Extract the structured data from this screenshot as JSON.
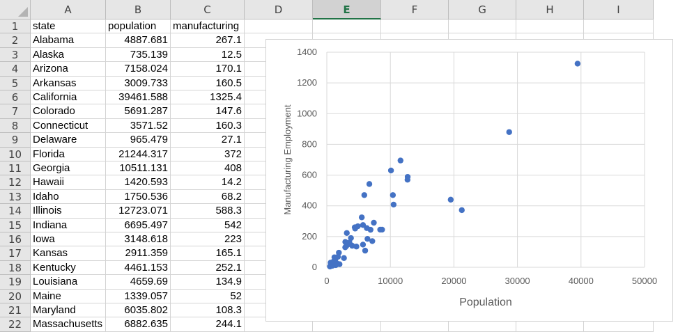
{
  "sheet": {
    "columns": [
      "A",
      "B",
      "C",
      "D",
      "E",
      "F",
      "G",
      "H",
      "I"
    ],
    "selected_column": "E",
    "row_numbers": [
      "1",
      "2",
      "3",
      "4",
      "5",
      "6",
      "7",
      "8",
      "9",
      "10",
      "11",
      "12",
      "13",
      "14",
      "15",
      "16",
      "17",
      "18",
      "19",
      "20",
      "21",
      "22"
    ],
    "rows": [
      [
        "state",
        "population",
        "manufacturing"
      ],
      [
        "Alabama",
        "4887.681",
        "267.1"
      ],
      [
        "Alaska",
        "735.139",
        "12.5"
      ],
      [
        "Arizona",
        "7158.024",
        "170.1"
      ],
      [
        "Arkansas",
        "3009.733",
        "160.5"
      ],
      [
        "California",
        "39461.588",
        "1325.4"
      ],
      [
        "Colorado",
        "5691.287",
        "147.6"
      ],
      [
        "Connecticut",
        "3571.52",
        "160.3"
      ],
      [
        "Delaware",
        "965.479",
        "27.1"
      ],
      [
        "Florida",
        "21244.317",
        "372"
      ],
      [
        "Georgia",
        "10511.131",
        "408"
      ],
      [
        "Hawaii",
        "1420.593",
        "14.2"
      ],
      [
        "Idaho",
        "1750.536",
        "68.2"
      ],
      [
        "Illinois",
        "12723.071",
        "588.3"
      ],
      [
        "Indiana",
        "6695.497",
        "542"
      ],
      [
        "Iowa",
        "3148.618",
        "223"
      ],
      [
        "Kansas",
        "2911.359",
        "165.1"
      ],
      [
        "Kentucky",
        "4461.153",
        "252.1"
      ],
      [
        "Louisiana",
        "4659.69",
        "134.9"
      ],
      [
        "Maine",
        "1339.057",
        "52"
      ],
      [
        "Maryland",
        "6035.802",
        "108.3"
      ],
      [
        "Massachusetts",
        "6882.635",
        "244.1"
      ]
    ]
  },
  "chart_data": {
    "type": "scatter",
    "title": "",
    "xlabel": "Population",
    "ylabel": "Manufacturing Employment",
    "xlim": [
      0,
      50000
    ],
    "ylim": [
      0,
      1400
    ],
    "x_ticks": [
      "0",
      "10000",
      "20000",
      "30000",
      "40000",
      "50000"
    ],
    "y_ticks": [
      "0",
      "200",
      "400",
      "600",
      "800",
      "1000",
      "1200",
      "1400"
    ],
    "gridlines": true,
    "marker_color": "#4472c4",
    "series": [
      {
        "x": [
          4887.681,
          735.139,
          7158.024,
          3009.733,
          39461.588,
          5691.287,
          3571.52,
          965.479,
          21244.317,
          10511.131,
          1420.593,
          1750.536,
          12723.071,
          6695.497,
          3148.618,
          2911.359,
          4461.153,
          4659.69,
          1339.057,
          6035.802,
          6882.635,
          28700,
          19500,
          11600,
          10100,
          12700,
          10400,
          5900,
          8700,
          8400,
          7400,
          5500,
          4400,
          3100,
          3800,
          4000,
          5700,
          6300,
          2900,
          3400,
          2700,
          1300,
          1100,
          1600,
          500,
          900,
          1200,
          2000,
          600,
          1900,
          6400
        ],
        "y": [
          267.1,
          12.5,
          170.1,
          160.5,
          1325.4,
          147.6,
          160.3,
          27.1,
          372,
          408,
          14.2,
          68.2,
          588.3,
          542,
          223,
          165.1,
          252.1,
          134.9,
          52,
          108.3,
          244.1,
          880,
          440,
          695,
          630,
          570,
          470,
          470,
          245,
          245,
          290,
          325,
          260,
          140,
          190,
          140,
          275,
          255,
          130,
          150,
          60,
          35,
          40,
          25,
          5,
          10,
          65,
          20,
          30,
          95,
          185
        ]
      }
    ]
  }
}
